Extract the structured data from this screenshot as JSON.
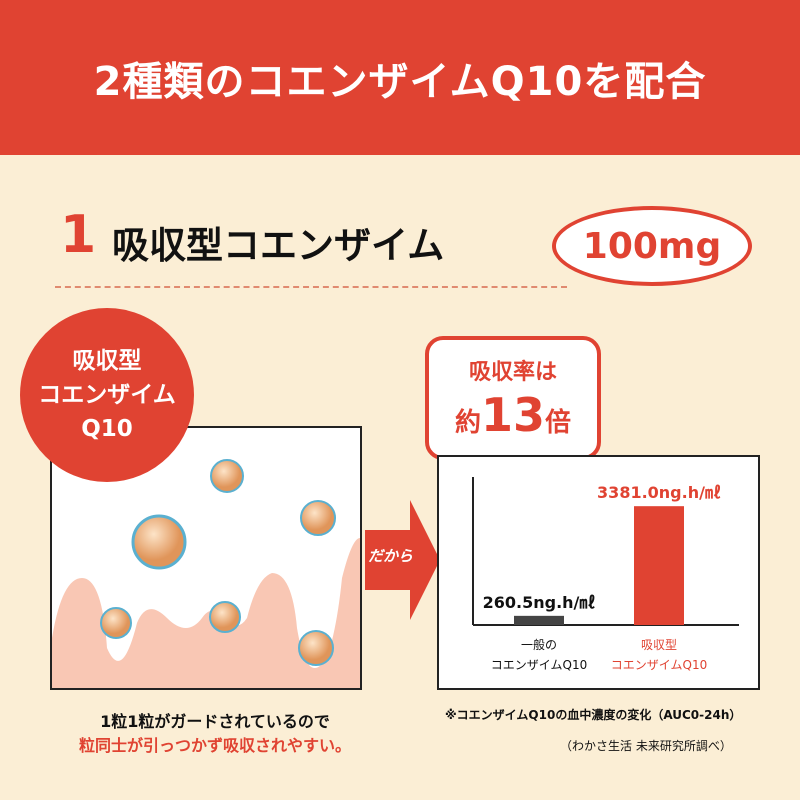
{
  "header": {
    "title": "2種類のコエンザイムQ10を配合"
  },
  "section": {
    "number": "1",
    "title": "吸収型コエンザイム",
    "dose": "100mg"
  },
  "left": {
    "badge_lines": [
      "吸収型",
      "コエンザイム",
      "Q10"
    ],
    "caption_line1": "1粒1粒がガードされているので",
    "caption_line2": "粒同士が引っつかず吸収されやすい。"
  },
  "arrow": {
    "label": "だから"
  },
  "callout": {
    "line1": "吸収率は",
    "prefix": "約",
    "number": "13",
    "suffix": "倍"
  },
  "chart_data": {
    "type": "bar",
    "categories": [
      [
        "一般の",
        "コエンザイムQ10"
      ],
      [
        "吸収型",
        "コエンザイムQ10"
      ]
    ],
    "values": [
      260.5,
      3381.0
    ],
    "data_labels": [
      "260.5ng.h/㎖",
      "3381.0ng.h/㎖"
    ],
    "colors": [
      "#444444",
      "#e04332"
    ],
    "ylim": [
      0,
      3500
    ]
  },
  "notes": {
    "note1": "※コエンザイムQ10の血中濃度の変化（AUC0-24h）",
    "note2": "（わかさ生活 未来研究所調べ）"
  },
  "colors": {
    "accent": "#e04332",
    "background": "#fbeed5"
  }
}
